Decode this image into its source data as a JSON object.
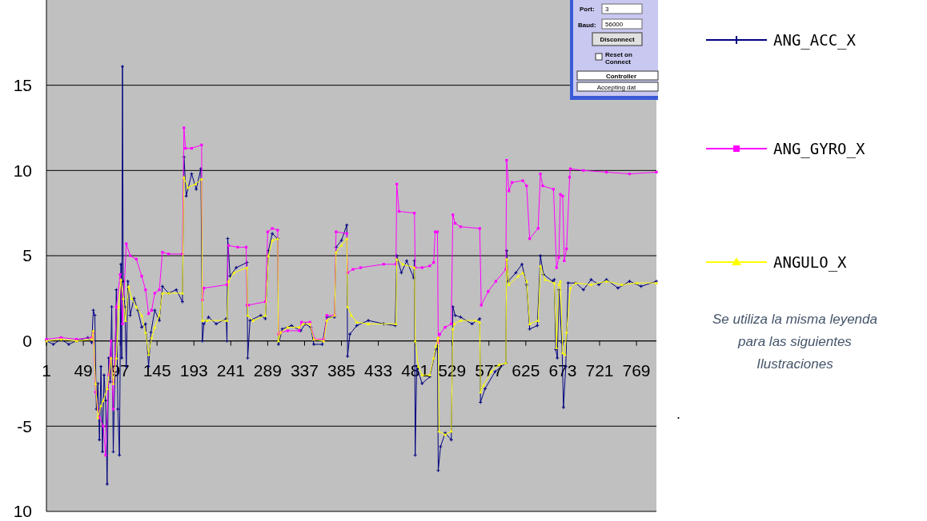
{
  "chart_data": {
    "type": "line",
    "xlim": [
      1,
      795
    ],
    "xticks": [
      1,
      49,
      97,
      145,
      193,
      241,
      289,
      337,
      385,
      433,
      481,
      529,
      577,
      625,
      673,
      721,
      769
    ],
    "ylim": [
      -10,
      20
    ],
    "yticks": [
      15,
      10,
      5,
      0,
      -5,
      {
        "value": -10,
        "label": "10"
      }
    ],
    "grid": "y",
    "legend": "right",
    "series": [
      {
        "name": "ANG_ACC_X",
        "color": "#000080",
        "marker": "cross",
        "x": [
          1,
          10,
          20,
          30,
          40,
          55,
          60,
          62,
          64,
          66,
          68,
          70,
          72,
          74,
          76,
          78,
          80,
          82,
          84,
          86,
          88,
          90,
          92,
          94,
          96,
          98,
          99,
          100,
          101,
          103,
          105,
          107,
          110,
          115,
          120,
          125,
          130,
          134,
          137,
          142,
          148,
          152,
          160,
          170,
          178,
          180,
          183,
          190,
          196,
          202,
          204,
          206,
          212,
          222,
          235,
          236,
          237,
          240,
          248,
          262,
          263,
          266,
          280,
          286,
          290,
          295,
          302,
          303,
          308,
          320,
          332,
          338,
          345,
          349,
          360,
          366,
          376,
          378,
          385,
          392,
          393,
          396,
          405,
          420,
          440,
          455,
          457,
          463,
          470,
          479,
          480,
          481,
          483,
          490,
          500,
          508,
          510,
          511,
          514,
          520,
          528,
          530,
          533,
          540,
          555,
          565,
          566,
          572,
          585,
          599,
          600,
          602,
          612,
          620,
          626,
          630,
          640,
          644,
          648,
          660,
          662,
          664,
          666,
          668,
          672,
          674,
          677,
          680,
          690,
          700,
          710,
          720,
          730,
          745,
          760,
          775,
          795
        ],
        "values": [
          0,
          -0.2,
          0.1,
          -0.2,
          0,
          0.2,
          -0.1,
          1.8,
          1.5,
          -4,
          -2.5,
          -5.8,
          -1.5,
          -6.5,
          -2,
          -3.5,
          -8.4,
          -1,
          -2.4,
          2,
          -6.5,
          -2,
          3,
          -4,
          -6.7,
          4.5,
          -1,
          16.1,
          3.5,
          2,
          -1.5,
          3.5,
          1.5,
          2.5,
          1.8,
          0.8,
          1,
          -1.5,
          0.5,
          1.8,
          1.2,
          3.2,
          2.8,
          3,
          2.3,
          10.8,
          8.5,
          9.8,
          8.9,
          10.1,
          0,
          1,
          1.4,
          1,
          1.3,
          0,
          6,
          3.8,
          4.3,
          4.6,
          -1,
          1.2,
          1.5,
          1.3,
          5.3,
          6.3,
          6,
          -0.2,
          0.7,
          0.9,
          0.6,
          1,
          0.8,
          -0.2,
          -0.2,
          1.4,
          1.4,
          5.5,
          5.9,
          6.8,
          -0.9,
          0.4,
          0.9,
          1.2,
          1,
          0.9,
          5,
          4,
          4.7,
          3.7,
          4.7,
          -6.7,
          -1.5,
          -2.5,
          -2.1,
          -0.5,
          -0.3,
          -7.6,
          -6.2,
          -5.4,
          -5.8,
          2,
          1.5,
          1.4,
          1,
          1.3,
          -3.6,
          -2.8,
          -1.8,
          -1.3,
          5.3,
          3.5,
          4,
          4.5,
          3.3,
          0.7,
          0.9,
          5,
          3.9,
          3.5,
          3.6,
          -0.5,
          -1,
          3,
          -0.1,
          -3.9,
          -1.5,
          3.4,
          3.4,
          3,
          3.6,
          3.3,
          3.6,
          3.1,
          3.5,
          3.2,
          3.5
        ]
      },
      {
        "name": "ANG_GYRO_X",
        "color": "#ff00ff",
        "marker": "square",
        "x": [
          1,
          20,
          40,
          60,
          62,
          65,
          70,
          75,
          78,
          82,
          85,
          88,
          92,
          97,
          100,
          105,
          110,
          118,
          125,
          130,
          134,
          138,
          142,
          148,
          152,
          160,
          178,
          180,
          182,
          190,
          203,
          204,
          206,
          236,
          238,
          250,
          261,
          262,
          264,
          286,
          289,
          295,
          302,
          303,
          306,
          315,
          330,
          333,
          344,
          350,
          362,
          366,
          376,
          378,
          392,
          393,
          400,
          410,
          440,
          456,
          457,
          460,
          480,
          481,
          490,
          500,
          505,
          507,
          510,
          511,
          513,
          520,
          528,
          530,
          533,
          540,
          565,
          567,
          576,
          586,
          599,
          600,
          603,
          607,
          621,
          626,
          630,
          641,
          644,
          647,
          661,
          665,
          668,
          670,
          673,
          675,
          678,
          682,
          683,
          700,
          730,
          760,
          795
        ],
        "values": [
          0.1,
          0.2,
          0.1,
          0.2,
          0.5,
          -3,
          -4.5,
          -5,
          -6.7,
          -2,
          0,
          -4,
          2,
          3.9,
          1,
          5.7,
          5,
          4.8,
          3.8,
          3,
          1.6,
          1.8,
          2.8,
          3,
          5.2,
          5.1,
          5.1,
          12.5,
          11.3,
          11.3,
          11.5,
          2.4,
          3.1,
          3.3,
          5.6,
          5.5,
          5.5,
          2.1,
          2.1,
          2.3,
          6.4,
          6.6,
          6.5,
          0.4,
          0.5,
          0.6,
          0.6,
          1.1,
          1.1,
          0.1,
          0.1,
          1.5,
          1.5,
          6.4,
          6.3,
          4,
          4.2,
          4.3,
          4.5,
          4.5,
          9.2,
          7.6,
          7.5,
          4.3,
          4.3,
          4.4,
          4.6,
          6.4,
          6.4,
          -0.1,
          0.4,
          0.8,
          1,
          7.4,
          6.9,
          6.7,
          6.6,
          2.1,
          2.9,
          3.5,
          4.2,
          10.6,
          8.8,
          9.3,
          9.4,
          9.1,
          6,
          6.6,
          9.8,
          9.1,
          8.9,
          4.3,
          4.9,
          8.6,
          8.5,
          4.7,
          5.4,
          9.6,
          10.1,
          10,
          9.9,
          9.8,
          9.9
        ]
      },
      {
        "name": "ANGULO_X",
        "color": "#ffff00",
        "marker": "triangle",
        "x": [
          1,
          20,
          40,
          60,
          62,
          65,
          68,
          72,
          75,
          80,
          85,
          88,
          92,
          95,
          98,
          101,
          104,
          108,
          112,
          118,
          125,
          130,
          134,
          138,
          142,
          148,
          152,
          160,
          178,
          180,
          185,
          195,
          203,
          204,
          210,
          236,
          238,
          245,
          262,
          263,
          270,
          286,
          290,
          295,
          302,
          303,
          306,
          315,
          330,
          335,
          344,
          349,
          362,
          366,
          376,
          378,
          385,
          392,
          393,
          398,
          405,
          420,
          456,
          457,
          465,
          480,
          481,
          485,
          490,
          500,
          505,
          508,
          511,
          512,
          520,
          528,
          530,
          532,
          540,
          560,
          565,
          566,
          570,
          580,
          590,
          599,
          600,
          603,
          615,
          621,
          626,
          630,
          641,
          644,
          650,
          662,
          665,
          668,
          670,
          673,
          676,
          678,
          683,
          690,
          710,
          730,
          750,
          770,
          795
        ],
        "values": [
          0,
          0.1,
          0,
          0.1,
          0.6,
          -2.5,
          -4.5,
          -3.8,
          -3.5,
          -2.8,
          -1,
          -2.5,
          -1,
          2,
          3.6,
          2.5,
          1.2,
          3.2,
          2.5,
          2,
          1.5,
          0.5,
          -0.8,
          0.2,
          0.8,
          1.5,
          2.8,
          2.8,
          2.8,
          9.6,
          9,
          9.2,
          9.5,
          1.2,
          1.2,
          1.2,
          3.5,
          4,
          4.3,
          1.5,
          1.2,
          1.5,
          5,
          5.9,
          6,
          0,
          0.5,
          0.8,
          0.8,
          1,
          1,
          0.1,
          0,
          1.2,
          1.5,
          5.2,
          5.6,
          6,
          2,
          1.5,
          1.1,
          1,
          1,
          4.8,
          4.5,
          4.3,
          0,
          -1.5,
          -2,
          -2,
          -1,
          -0.3,
          0.2,
          -5.3,
          -5.5,
          -5.3,
          0.7,
          1,
          1.2,
          1.2,
          1.1,
          -3,
          -2.6,
          -1.8,
          -1.4,
          -1.3,
          4.8,
          3.3,
          3.8,
          4,
          3.5,
          1,
          1.2,
          4.4,
          3.6,
          3.4,
          -0.4,
          3.3,
          3.5,
          -0.7,
          -0.8,
          0.5,
          3.1,
          3.4,
          3.3,
          3.5,
          3.3,
          3.4,
          3.4
        ]
      }
    ],
    "annotations": [
      "Se utiliza la misma leyenda para las siguientes Ilustraciones",
      ".",
      "Port:",
      "3",
      "Baud:",
      "56000",
      "Disconnect",
      "Reset on Connect",
      "Controller",
      "Accepting dat"
    ]
  }
}
